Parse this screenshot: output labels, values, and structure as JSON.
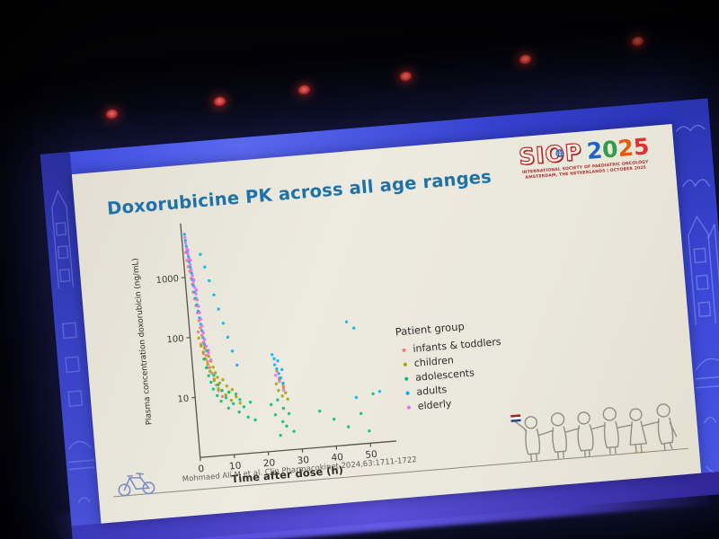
{
  "slide": {
    "title": "Doxorubicine PK across all age ranges",
    "citation": "Mohmaed Ali M et al. Clin Pharmacokinet 2024,63:1711-1722",
    "logo": {
      "name": "SIOP",
      "year": "2025",
      "year_digits": [
        "2",
        "0",
        "2",
        "5"
      ],
      "year_colors": [
        "#1f63c8",
        "#2f9e44",
        "#e8590c",
        "#e03131"
      ],
      "line1": "INTERNATIONAL SOCIETY OF PAEDIATRIC ONCOLOGY",
      "line2": "AMSTERDAM, THE NETHERLANDS | OCTOBER 2025"
    }
  },
  "colors": {
    "title_blue": "#1e72a8",
    "screen_blue": "#2c35c4",
    "band_purple": "#5a4cd6",
    "stage_light_red": "#e83226",
    "flag": [
      "#AE1C28",
      "#FFFFFF",
      "#21468B"
    ]
  },
  "chart_data": {
    "type": "scatter",
    "title": "",
    "xlabel": "Time after dose (h)",
    "ylabel": "Plasma concentration doxorubicin (ng/mL)",
    "x_ticks": [
      0,
      10,
      20,
      30,
      40,
      50
    ],
    "y_ticks": [
      10,
      100,
      1000
    ],
    "y_scale": "log",
    "xlim": [
      0,
      55
    ],
    "ylim": [
      1,
      9000
    ],
    "grid": false,
    "legend_title": "Patient group",
    "legend_position": "right",
    "series": [
      {
        "name": "infants & toddlers",
        "color": "#F8766D",
        "points": [
          [
            0.8,
            2600
          ],
          [
            1,
            1900
          ],
          [
            1.2,
            1500
          ],
          [
            1.5,
            1250
          ],
          [
            1.8,
            950
          ],
          [
            2,
            760
          ],
          [
            2,
            560
          ],
          [
            2.3,
            430
          ],
          [
            2.5,
            330
          ],
          [
            2.8,
            250
          ],
          [
            3,
            185
          ],
          [
            3.2,
            140
          ],
          [
            3.5,
            105
          ],
          [
            3.8,
            80
          ],
          [
            4,
            62
          ],
          [
            4.2,
            48
          ],
          [
            4.5,
            38
          ],
          [
            5,
            30
          ],
          [
            5.5,
            24
          ],
          [
            6,
            19
          ],
          [
            6.5,
            15
          ],
          [
            7,
            12
          ],
          [
            8,
            9.5
          ],
          [
            3,
            75
          ],
          [
            3.5,
            52
          ],
          [
            4.5,
            30
          ],
          [
            5,
            58
          ],
          [
            2.5,
            120
          ],
          [
            24.5,
            21
          ],
          [
            25,
            16
          ],
          [
            26,
            12
          ]
        ]
      },
      {
        "name": "children",
        "color": "#A3A500",
        "points": [
          [
            2.5,
            95
          ],
          [
            3,
            70
          ],
          [
            3.5,
            55
          ],
          [
            4,
            66
          ],
          [
            4,
            42
          ],
          [
            4.5,
            34
          ],
          [
            5,
            46
          ],
          [
            5,
            26
          ],
          [
            5.5,
            38
          ],
          [
            6,
            30
          ],
          [
            6,
            18
          ],
          [
            6.5,
            24
          ],
          [
            7,
            20
          ],
          [
            7,
            13
          ],
          [
            7.5,
            16
          ],
          [
            8,
            12
          ],
          [
            8.5,
            18
          ],
          [
            9,
            10
          ],
          [
            9.5,
            14
          ],
          [
            10,
            11
          ],
          [
            10.5,
            8
          ],
          [
            11,
            12
          ],
          [
            12,
            9
          ],
          [
            13,
            7
          ],
          [
            24,
            13
          ],
          [
            24.5,
            10
          ],
          [
            25,
            15
          ],
          [
            25.5,
            8
          ],
          [
            26,
            11
          ],
          [
            26.5,
            9
          ],
          [
            27,
            7
          ]
        ]
      },
      {
        "name": "adolescents",
        "color": "#00BF7D",
        "points": [
          [
            3.5,
            42
          ],
          [
            4,
            30
          ],
          [
            4.5,
            22
          ],
          [
            5,
            17
          ],
          [
            5.5,
            13
          ],
          [
            6,
            22
          ],
          [
            6.5,
            10
          ],
          [
            7,
            15
          ],
          [
            7.5,
            8
          ],
          [
            8,
            12
          ],
          [
            9,
            9
          ],
          [
            9.5,
            6
          ],
          [
            10,
            11
          ],
          [
            11,
            7
          ],
          [
            12,
            10
          ],
          [
            12.5,
            5
          ],
          [
            13,
            8
          ],
          [
            14,
            6
          ],
          [
            15,
            4
          ],
          [
            16,
            7
          ],
          [
            17,
            3.5
          ],
          [
            22,
            6
          ],
          [
            23,
            4
          ],
          [
            24,
            7
          ],
          [
            25,
            3
          ],
          [
            25.5,
            5
          ],
          [
            26,
            2.5
          ],
          [
            27,
            4
          ],
          [
            28,
            2
          ],
          [
            24,
            1.8
          ],
          [
            36,
            4
          ],
          [
            40,
            2.8
          ],
          [
            44,
            2
          ],
          [
            48,
            3.2
          ],
          [
            50,
            1.6
          ],
          [
            52,
            6.5
          ]
        ]
      },
      {
        "name": "adults",
        "color": "#00B0F6",
        "points": [
          [
            0.9,
            5200
          ],
          [
            1,
            4100
          ],
          [
            1.1,
            3300
          ],
          [
            1.3,
            2700
          ],
          [
            1.5,
            2200
          ],
          [
            1.6,
            1800
          ],
          [
            1.8,
            1450
          ],
          [
            2,
            1150
          ],
          [
            2,
            900
          ],
          [
            2.2,
            720
          ],
          [
            2.4,
            560
          ],
          [
            2.6,
            440
          ],
          [
            2.8,
            340
          ],
          [
            3,
            265
          ],
          [
            3.2,
            205
          ],
          [
            3.4,
            160
          ],
          [
            3.6,
            125
          ],
          [
            3.8,
            95
          ],
          [
            4,
            74
          ],
          [
            4.5,
            57
          ],
          [
            5,
            2300
          ],
          [
            6,
            1400
          ],
          [
            7,
            820
          ],
          [
            8,
            470
          ],
          [
            9,
            270
          ],
          [
            10,
            155
          ],
          [
            11,
            90
          ],
          [
            12,
            52
          ],
          [
            13,
            30
          ],
          [
            23.5,
            40
          ],
          [
            24,
            34
          ],
          [
            24,
            27
          ],
          [
            24.5,
            23
          ],
          [
            25,
            19
          ],
          [
            25,
            31
          ],
          [
            25.5,
            16
          ],
          [
            26,
            13
          ],
          [
            26,
            22
          ],
          [
            46,
            110
          ],
          [
            48,
            85
          ],
          [
            47,
            6
          ],
          [
            54,
            7
          ]
        ]
      },
      {
        "name": "elderly",
        "color": "#E76BF3",
        "points": [
          [
            0.9,
            4600
          ],
          [
            1,
            3700
          ],
          [
            1.2,
            3000
          ],
          [
            1.4,
            2450
          ],
          [
            1.6,
            2000
          ],
          [
            1.8,
            1600
          ],
          [
            2,
            1300
          ],
          [
            2.2,
            1050
          ],
          [
            2.4,
            840
          ],
          [
            2.6,
            660
          ],
          [
            2.8,
            520
          ],
          [
            3,
            410
          ],
          [
            3.2,
            320
          ],
          [
            3.4,
            250
          ],
          [
            3.6,
            195
          ],
          [
            3.8,
            150
          ],
          [
            4,
            115
          ],
          [
            4.2,
            88
          ],
          [
            4.5,
            68
          ],
          [
            5,
            52
          ],
          [
            5.5,
            40
          ],
          [
            2,
            1900
          ],
          [
            2.5,
            900
          ],
          [
            3,
            600
          ],
          [
            1.5,
            2800
          ],
          [
            24,
            18
          ],
          [
            25,
            14
          ],
          [
            26,
            10
          ]
        ]
      }
    ]
  }
}
